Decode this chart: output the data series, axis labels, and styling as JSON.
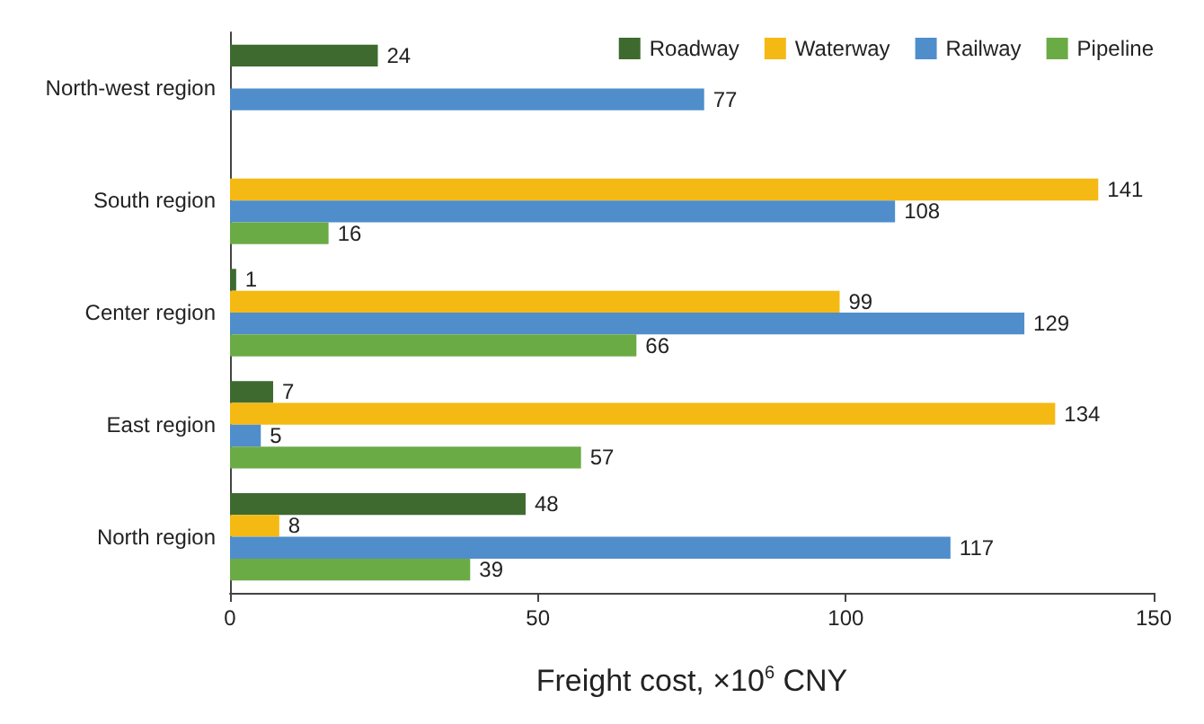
{
  "chart_data": {
    "type": "bar",
    "orientation": "horizontal",
    "xlabel": "Freight cost, ×10$^{6}$ CNY",
    "categories": [
      "North-west region",
      "South region",
      "Center region",
      "East region",
      "North region"
    ],
    "series": [
      {
        "name": "Roadway",
        "color": "#3e6a2f",
        "values": [
          24,
          null,
          1,
          7,
          48
        ]
      },
      {
        "name": "Waterway",
        "color": "#f5b914",
        "values": [
          null,
          141,
          99,
          134,
          8
        ]
      },
      {
        "name": "Railway",
        "color": "#4f8ecb",
        "values": [
          77,
          108,
          129,
          5,
          117
        ]
      },
      {
        "name": "Pipeline",
        "color": "#6aab45",
        "values": [
          null,
          16,
          66,
          57,
          39
        ]
      }
    ],
    "xlim": [
      0,
      150
    ],
    "xticks": [
      0,
      50,
      100,
      150
    ],
    "data_labels": true,
    "legend": "top right",
    "grid": false
  }
}
